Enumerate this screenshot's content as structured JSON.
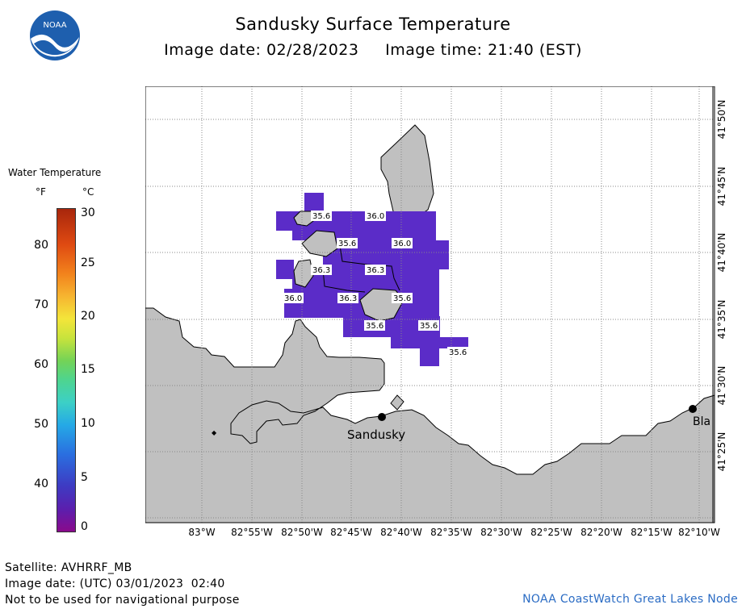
{
  "header": {
    "title": "Sandusky Surface Temperature",
    "subtitle": "Image date: 02/28/2023     Image time: 21:40 (EST)",
    "logo_text": "NOAA"
  },
  "legend": {
    "title": "Water Temperature",
    "unit_f": "°F",
    "unit_c": "°C",
    "f_ticks": [
      "80",
      "70",
      "60",
      "50",
      "40"
    ],
    "c_ticks": [
      "30",
      "25",
      "20",
      "15",
      "10",
      "5",
      "0"
    ]
  },
  "map": {
    "lon_labels": [
      "83°W",
      "82°55'W",
      "82°50'W",
      "82°45'W",
      "82°40'W",
      "82°35'W",
      "82°30'W",
      "82°25'W",
      "82°20'W",
      "82°15'W",
      "82°10'W"
    ],
    "lat_labels": [
      "41°50'N",
      "41°45'N",
      "41°40'N",
      "41°35'N",
      "41°30'N",
      "41°25'N"
    ],
    "temperature_labels": [
      "35.6",
      "36.0",
      "35.6",
      "36.0",
      "36.3",
      "36.3",
      "36.0",
      "36.3",
      "35.6",
      "35.6",
      "35.6",
      "35.6"
    ],
    "places": [
      "Sandusky",
      "Bla"
    ],
    "colors": {
      "land": "#c0c0c0",
      "water_temp": "#5b2cc8",
      "grid": "#888888"
    }
  },
  "footer": {
    "satellite": "Satellite: AVHRRF_MB",
    "utc_date": "Image date: (UTC) 03/01/2023  02:40",
    "warning": "Not to be used for navigational purpose",
    "credit": "NOAA CoastWatch Great Lakes Node"
  }
}
